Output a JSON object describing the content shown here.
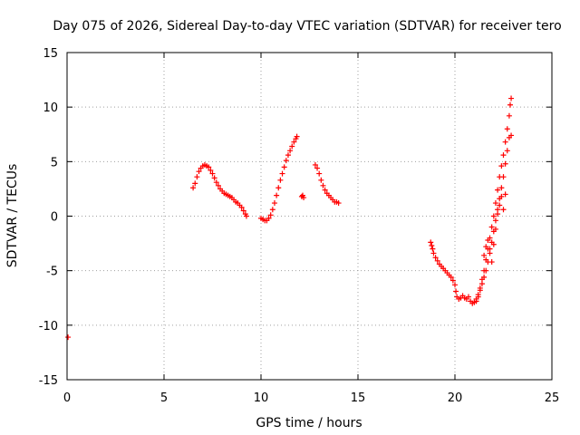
{
  "chart_data": {
    "type": "scatter",
    "title": "Day 075 of 2026, Sidereal Day-to-day VTEC variation (SDTVAR) for receiver tero",
    "xlabel": "GPS time / hours",
    "ylabel": "SDTVAR / TECUs",
    "xlim": [
      0,
      25
    ],
    "ylim": [
      -15,
      15
    ],
    "x_ticks": [
      0,
      5,
      10,
      15,
      20,
      25
    ],
    "y_ticks": [
      -15,
      -10,
      -5,
      0,
      5,
      10,
      15
    ],
    "x_tick_labels": [
      "0",
      "5",
      "10",
      "15",
      "20",
      "25"
    ],
    "y_tick_labels": [
      "-15",
      "-10",
      "-5",
      "0",
      "5",
      "10",
      "15"
    ],
    "grid": true,
    "marker": "+",
    "series": [
      {
        "color": "#ff0000",
        "points": [
          [
            0.05,
            -11.1
          ],
          [
            6.5,
            2.6
          ],
          [
            6.6,
            3.0
          ],
          [
            6.7,
            3.6
          ],
          [
            6.8,
            4.1
          ],
          [
            6.9,
            4.4
          ],
          [
            7.0,
            4.6
          ],
          [
            7.1,
            4.7
          ],
          [
            7.2,
            4.6
          ],
          [
            7.3,
            4.5
          ],
          [
            7.4,
            4.2
          ],
          [
            7.5,
            3.9
          ],
          [
            7.6,
            3.5
          ],
          [
            7.7,
            3.1
          ],
          [
            7.8,
            2.8
          ],
          [
            7.9,
            2.5
          ],
          [
            8.0,
            2.3
          ],
          [
            8.1,
            2.1
          ],
          [
            8.2,
            2.0
          ],
          [
            8.3,
            1.9
          ],
          [
            8.4,
            1.8
          ],
          [
            8.5,
            1.7
          ],
          [
            8.6,
            1.5
          ],
          [
            8.7,
            1.3
          ],
          [
            8.8,
            1.2
          ],
          [
            8.9,
            1.0
          ],
          [
            9.0,
            0.8
          ],
          [
            9.1,
            0.5
          ],
          [
            9.2,
            0.2
          ],
          [
            9.25,
            0.0
          ],
          [
            10.0,
            -0.2
          ],
          [
            10.1,
            -0.3
          ],
          [
            10.2,
            -0.4
          ],
          [
            10.3,
            -0.4
          ],
          [
            10.4,
            -0.2
          ],
          [
            10.5,
            0.1
          ],
          [
            10.6,
            0.6
          ],
          [
            10.7,
            1.2
          ],
          [
            10.8,
            1.9
          ],
          [
            10.9,
            2.6
          ],
          [
            11.0,
            3.3
          ],
          [
            11.1,
            3.9
          ],
          [
            11.2,
            4.5
          ],
          [
            11.3,
            5.1
          ],
          [
            11.4,
            5.6
          ],
          [
            11.5,
            6.0
          ],
          [
            11.6,
            6.4
          ],
          [
            11.7,
            6.8
          ],
          [
            11.8,
            7.1
          ],
          [
            11.85,
            7.3
          ],
          [
            12.1,
            1.8
          ],
          [
            12.15,
            1.9
          ],
          [
            12.2,
            1.7
          ],
          [
            12.8,
            4.7
          ],
          [
            12.9,
            4.4
          ],
          [
            13.0,
            3.9
          ],
          [
            13.1,
            3.3
          ],
          [
            13.2,
            2.8
          ],
          [
            13.3,
            2.4
          ],
          [
            13.4,
            2.1
          ],
          [
            13.5,
            1.9
          ],
          [
            13.6,
            1.7
          ],
          [
            13.7,
            1.5
          ],
          [
            13.8,
            1.3
          ],
          [
            13.9,
            1.3
          ],
          [
            14.0,
            1.2
          ],
          [
            18.75,
            -2.4
          ],
          [
            18.8,
            -2.7
          ],
          [
            18.85,
            -3.0
          ],
          [
            18.9,
            -3.4
          ],
          [
            19.0,
            -3.8
          ],
          [
            19.1,
            -4.1
          ],
          [
            19.2,
            -4.4
          ],
          [
            19.3,
            -4.6
          ],
          [
            19.4,
            -4.8
          ],
          [
            19.5,
            -5.0
          ],
          [
            19.6,
            -5.2
          ],
          [
            19.7,
            -5.4
          ],
          [
            19.8,
            -5.6
          ],
          [
            19.9,
            -5.9
          ],
          [
            20.0,
            -6.3
          ],
          [
            20.05,
            -6.9
          ],
          [
            20.1,
            -7.4
          ],
          [
            20.2,
            -7.6
          ],
          [
            20.3,
            -7.5
          ],
          [
            20.4,
            -7.3
          ],
          [
            20.5,
            -7.5
          ],
          [
            20.6,
            -7.6
          ],
          [
            20.7,
            -7.4
          ],
          [
            20.8,
            -7.8
          ],
          [
            20.9,
            -8.0
          ],
          [
            21.0,
            -7.9
          ],
          [
            21.1,
            -7.6
          ],
          [
            21.2,
            -7.2
          ],
          [
            21.3,
            -6.6
          ],
          [
            21.4,
            -5.8
          ],
          [
            21.5,
            -5.0
          ],
          [
            21.6,
            -4.0
          ],
          [
            21.7,
            -3.0
          ],
          [
            21.8,
            -2.0
          ],
          [
            21.9,
            -1.0
          ],
          [
            22.0,
            0.0
          ],
          [
            22.1,
            1.2
          ],
          [
            22.2,
            2.4
          ],
          [
            22.3,
            3.6
          ],
          [
            22.4,
            4.6
          ],
          [
            22.5,
            5.6
          ],
          [
            22.6,
            6.8
          ],
          [
            22.7,
            8.0
          ],
          [
            22.8,
            9.2
          ],
          [
            22.85,
            10.2
          ],
          [
            22.9,
            10.8
          ],
          [
            21.1,
            -7.8
          ],
          [
            21.2,
            -7.4
          ],
          [
            21.3,
            -6.8
          ],
          [
            21.4,
            -6.2
          ],
          [
            21.5,
            -5.6
          ],
          [
            21.6,
            -5.0
          ],
          [
            21.7,
            -4.2
          ],
          [
            21.8,
            -3.4
          ],
          [
            21.9,
            -2.4
          ],
          [
            22.0,
            -1.4
          ],
          [
            22.1,
            -0.4
          ],
          [
            22.2,
            0.6
          ],
          [
            22.3,
            1.6
          ],
          [
            22.4,
            2.6
          ],
          [
            22.5,
            3.6
          ],
          [
            22.6,
            4.8
          ],
          [
            22.7,
            6.0
          ],
          [
            22.8,
            7.2
          ],
          [
            22.9,
            7.4
          ],
          [
            21.5,
            -3.6
          ],
          [
            21.6,
            -2.8
          ],
          [
            21.7,
            -2.2
          ],
          [
            21.8,
            -3.0
          ],
          [
            21.9,
            -4.2
          ],
          [
            22.0,
            -2.6
          ],
          [
            22.1,
            -1.2
          ],
          [
            22.2,
            0.2
          ],
          [
            22.3,
            1.0
          ],
          [
            22.4,
            1.8
          ],
          [
            22.5,
            0.6
          ],
          [
            22.6,
            2.0
          ]
        ]
      }
    ]
  }
}
